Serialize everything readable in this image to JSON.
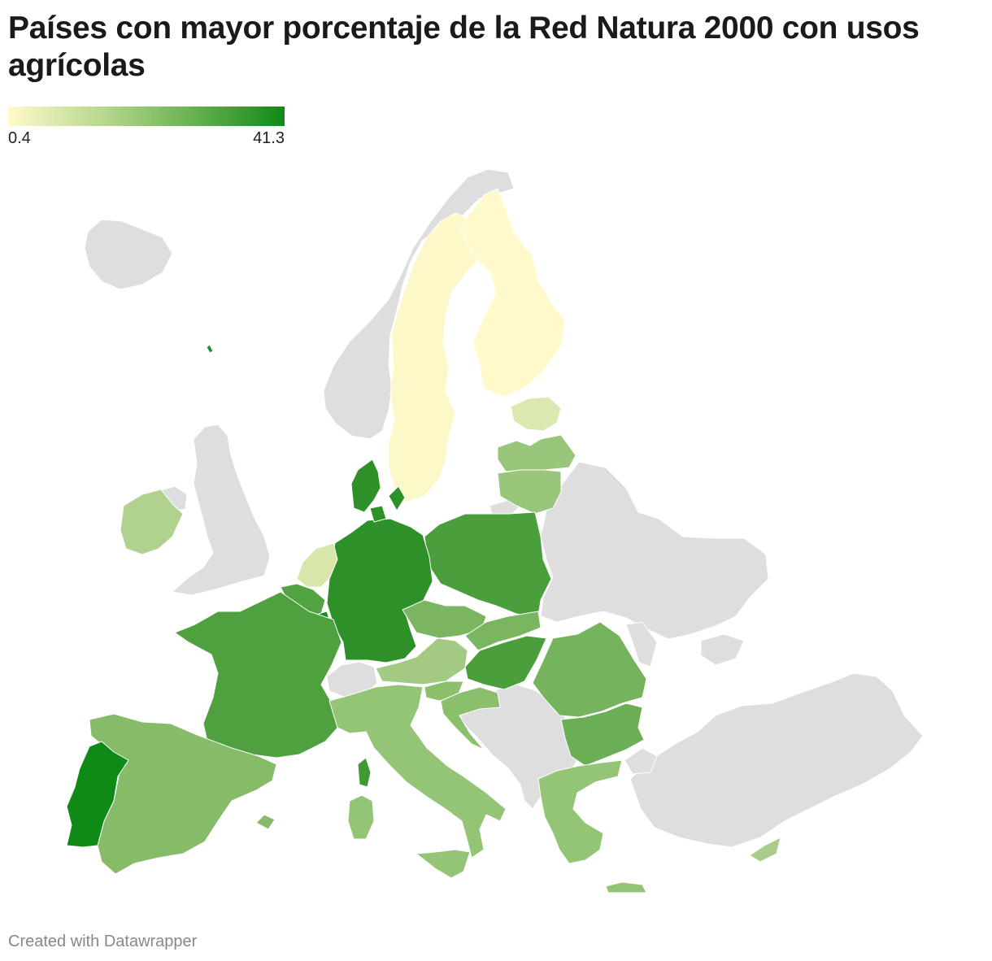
{
  "title": "Países con mayor porcentaje de la Red Natura 2000 con usos agrícolas",
  "legend": {
    "min_label": "0.4",
    "max_label": "41.3",
    "min_value": 0.4,
    "max_value": 41.3,
    "color_min": "#fff9cc",
    "color_mid": "#8cc073",
    "color_max": "#0f8a17"
  },
  "no_data_color": "#dedede",
  "footer": "Created with Datawrapper",
  "chart_data": {
    "type": "choropleth",
    "color_scale": {
      "min": 0.4,
      "max": 41.3,
      "colors": [
        "#fff9cc",
        "#b6d78c",
        "#5fae4b",
        "#0f8a17"
      ]
    },
    "regions": [
      {
        "id": "portugal",
        "value": 41.3,
        "color": "#0f8a17"
      },
      {
        "id": "luxembourg",
        "value": 40.0,
        "color": "#0f8a17"
      },
      {
        "id": "azores",
        "value": 38.0,
        "color": "#238d25"
      },
      {
        "id": "germany",
        "value": 37.0,
        "color": "#2d9029"
      },
      {
        "id": "denmark",
        "value": 36.0,
        "color": "#2d9029"
      },
      {
        "id": "corsica",
        "value": 34.0,
        "color": "#3f9a36"
      },
      {
        "id": "poland",
        "value": 32.0,
        "color": "#4a9f3c"
      },
      {
        "id": "france",
        "value": 32.0,
        "color": "#4fa03f"
      },
      {
        "id": "hungary",
        "value": 32.0,
        "color": "#4a9f3c"
      },
      {
        "id": "belgium",
        "value": 31.0,
        "color": "#52a343"
      },
      {
        "id": "bulgaria",
        "value": 28.0,
        "color": "#6cae55"
      },
      {
        "id": "romania",
        "value": 26.0,
        "color": "#75b45c"
      },
      {
        "id": "spain",
        "value": 25.0,
        "color": "#86bb68"
      },
      {
        "id": "czechia",
        "value": 25.0,
        "color": "#7ab55f"
      },
      {
        "id": "slovakia",
        "value": 25.0,
        "color": "#7ab55f"
      },
      {
        "id": "croatia",
        "value": 24.0,
        "color": "#8cbf6c"
      },
      {
        "id": "slovenia",
        "value": 24.0,
        "color": "#8cbf6c"
      },
      {
        "id": "italy",
        "value": 22.0,
        "color": "#94c475"
      },
      {
        "id": "greece",
        "value": 22.0,
        "color": "#94c475"
      },
      {
        "id": "lithuania",
        "value": 22.0,
        "color": "#9ac67b"
      },
      {
        "id": "latvia",
        "value": 22.0,
        "color": "#9ac67b"
      },
      {
        "id": "austria",
        "value": 20.0,
        "color": "#a3ca82"
      },
      {
        "id": "ireland",
        "value": 18.0,
        "color": "#b0d28e"
      },
      {
        "id": "cyprus",
        "value": 18.0,
        "color": "#a8cd88"
      },
      {
        "id": "netherlands",
        "value": 12.0,
        "color": "#d8e6aa"
      },
      {
        "id": "estonia",
        "value": 10.0,
        "color": "#dbe8b0"
      },
      {
        "id": "sweden",
        "value": 1.0,
        "color": "#fcf8c8"
      },
      {
        "id": "finland",
        "value": 0.4,
        "color": "#fff9cc"
      }
    ]
  }
}
